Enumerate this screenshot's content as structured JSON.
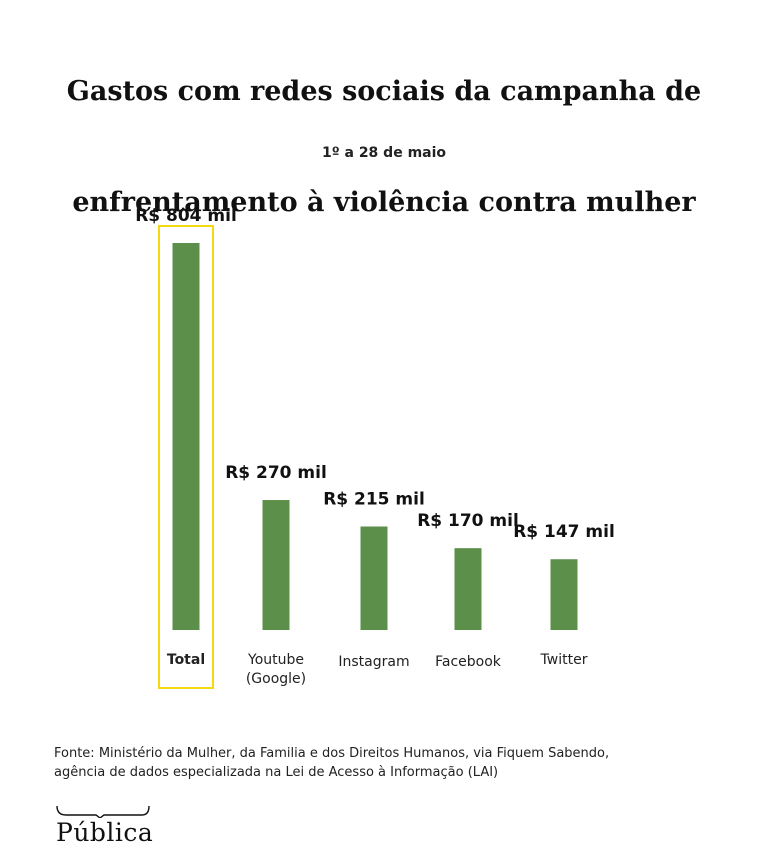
{
  "title_lines": [
    "Gastos com redes sociais da campanha de",
    "enfrentamento à violência contra mulher"
  ],
  "subtitle": "1º a 28 de maio",
  "colors": {
    "bar": "#5b8f4a",
    "highlight": "#f4d90f",
    "text": "#1a1a1a"
  },
  "chart_data": {
    "type": "bar",
    "categories": [
      "Total",
      "Youtube\n(Google)",
      "Instagram",
      "Facebook",
      "Twitter"
    ],
    "values": [
      804,
      270,
      215,
      170,
      147
    ],
    "value_labels": [
      "R$ 804 mil",
      "R$ 270 mil",
      "R$ 215 mil",
      "R$ 170 mil",
      "R$ 147 mil"
    ],
    "highlighted_category": "Total",
    "title": "",
    "xlabel": "",
    "ylabel": "",
    "ylim": [
      0,
      804
    ],
    "grid": false,
    "legend": "none"
  },
  "source_lines": [
    "Fonte: Ministério da Mulher, da Familia e dos Direitos Humanos, via Fiquem Sabendo,",
    "agência de dados especializada na Lei de Acesso à Informação (LAI)"
  ],
  "logo_text": "Pública"
}
